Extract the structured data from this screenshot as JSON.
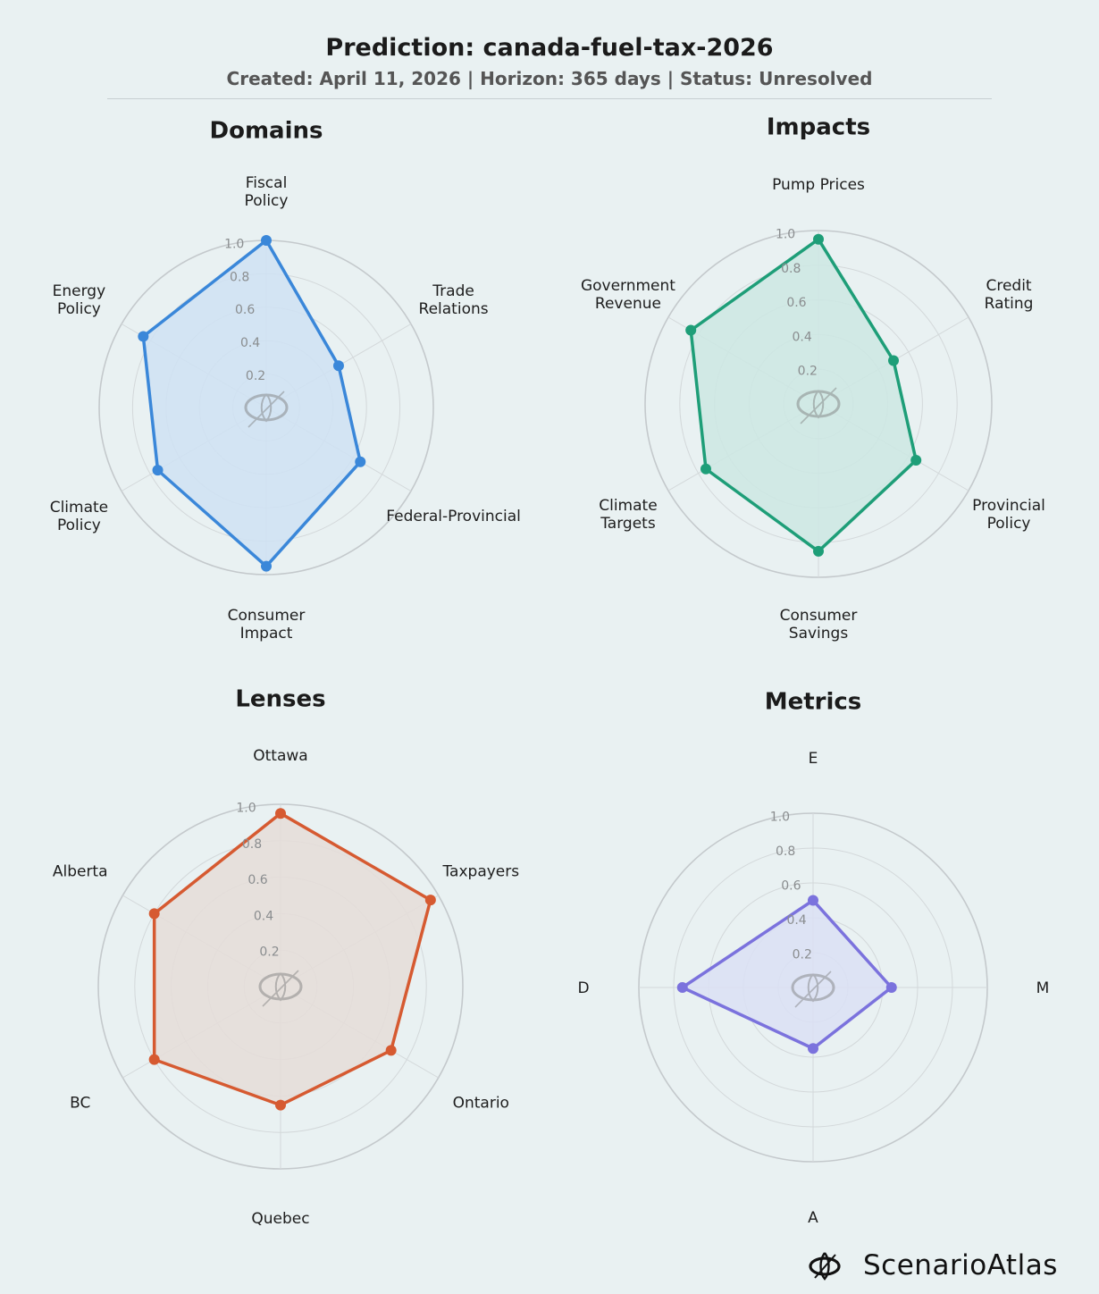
{
  "header": {
    "title": "Prediction: canada-fuel-tax-2026",
    "subtitle": "Created: April 11, 2026  |  Horizon: 365 days  |  Status: Unresolved"
  },
  "brand": {
    "name": "ScenarioAtlas",
    "icon": "scenario-atlas-logo-icon"
  },
  "chart_data": [
    {
      "type": "radar",
      "title": "Domains",
      "color": "#3a87d9",
      "fill": "#cfe2f3",
      "rlim": [
        0,
        1.0
      ],
      "rticks": [
        "0.2",
        "0.4",
        "0.6",
        "0.8",
        "1.0"
      ],
      "axes": [
        "Fiscal\nPolicy",
        "Trade\nRelations",
        "Federal-Provincial",
        "Consumer\nImpact",
        "Climate\nPolicy",
        "Energy\nPolicy"
      ],
      "values": [
        1.0,
        0.5,
        0.65,
        0.95,
        0.75,
        0.85
      ]
    },
    {
      "type": "radar",
      "title": "Impacts",
      "color": "#1e9e78",
      "fill": "#cde7e3",
      "rlim": [
        0,
        1.0
      ],
      "rticks": [
        "0.2",
        "0.4",
        "0.6",
        "0.8",
        "1.0"
      ],
      "axes": [
        "Pump Prices",
        "Credit\nRating",
        "Provincial\nPolicy",
        "Consumer\nSavings",
        "Climate\nTargets",
        "Government\nRevenue"
      ],
      "values": [
        0.95,
        0.5,
        0.65,
        0.85,
        0.75,
        0.85
      ]
    },
    {
      "type": "radar",
      "title": "Lenses",
      "color": "#d65a31",
      "fill": "#e5ddd8",
      "rlim": [
        0,
        1.0
      ],
      "rticks": [
        "0.2",
        "0.4",
        "0.6",
        "0.8",
        "1.0"
      ],
      "axes": [
        "Ottawa",
        "Taxpayers",
        "Ontario",
        "Quebec",
        "BC",
        "Alberta"
      ],
      "values": [
        0.95,
        0.95,
        0.7,
        0.65,
        0.8,
        0.8
      ]
    },
    {
      "type": "radar",
      "title": "Metrics",
      "color": "#7b72dd",
      "fill": "#dbe0f4",
      "rlim": [
        0,
        1.0
      ],
      "rticks": [
        "0.2",
        "0.4",
        "0.6",
        "0.8",
        "1.0"
      ],
      "axes": [
        "E",
        "M",
        "A",
        "D"
      ],
      "values": [
        0.5,
        0.45,
        0.35,
        0.75
      ]
    }
  ]
}
